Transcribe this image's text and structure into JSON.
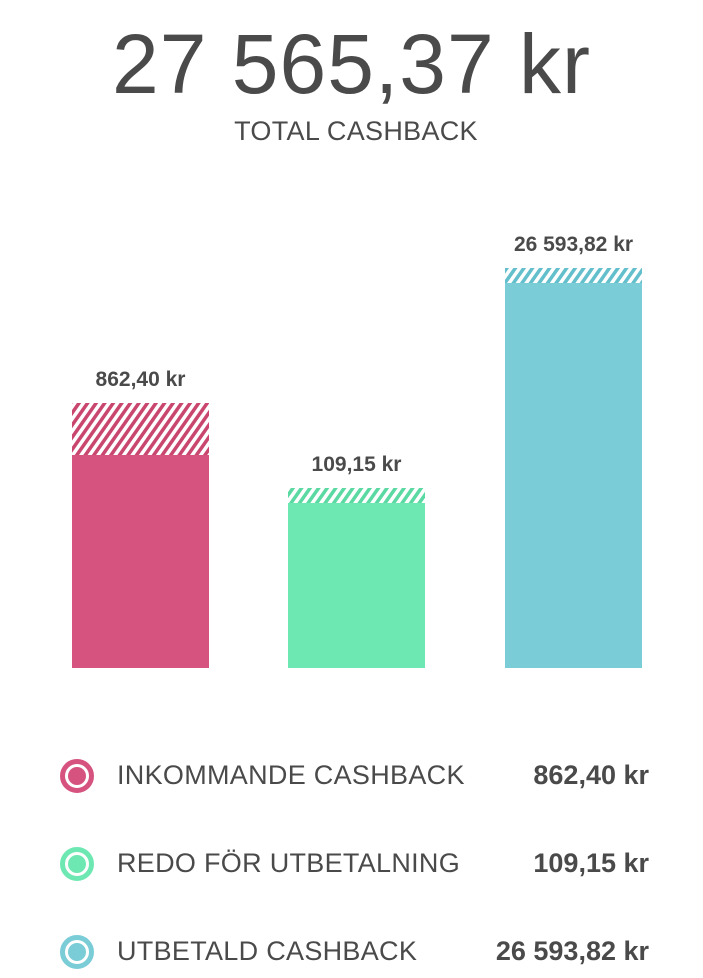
{
  "header": {
    "total_amount": "27 565,37 kr",
    "total_label": "TOTAL CASHBACK"
  },
  "chart_data": {
    "type": "bar",
    "categories": [
      "INKOMMANDE CASHBACK",
      "REDO FÖR UTBETALNING",
      "UTBETALD CASHBACK"
    ],
    "values": [
      862.4,
      109.15,
      26593.82
    ],
    "value_labels": [
      "862,40 kr",
      "109,15 kr",
      "26 593,82 kr"
    ],
    "colors": [
      "#d6527f",
      "#6ee8b2",
      "#7accd6"
    ],
    "hatch_colors": [
      "#c9466f",
      "#5bd9a3",
      "#63bfcc"
    ],
    "legend_placement": "bottom",
    "grid": false
  },
  "legend": {
    "items": [
      {
        "name": "INKOMMANDE CASHBACK",
        "value": "862,40 kr",
        "color": "#d6527f"
      },
      {
        "name": "REDO FÖR UTBETALNING",
        "value": "109,15 kr",
        "color": "#6ee8b2"
      },
      {
        "name": "UTBETALD CASHBACK",
        "value": "26 593,82 kr",
        "color": "#7accd6"
      }
    ]
  }
}
